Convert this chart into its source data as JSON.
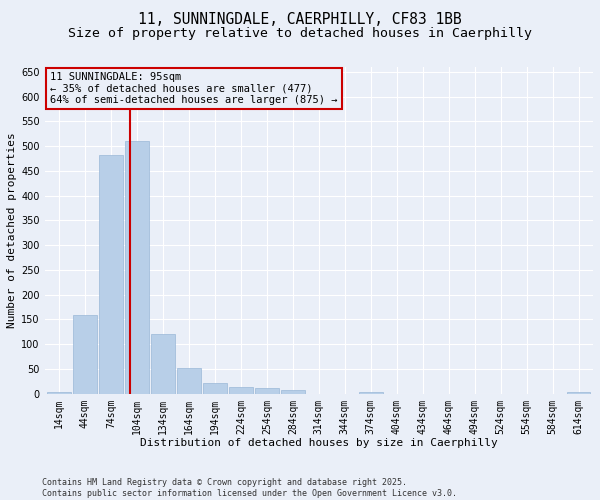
{
  "title_line1": "11, SUNNINGDALE, CAERPHILLY, CF83 1BB",
  "title_line2": "Size of property relative to detached houses in Caerphilly",
  "xlabel": "Distribution of detached houses by size in Caerphilly",
  "ylabel": "Number of detached properties",
  "footer_line1": "Contains HM Land Registry data © Crown copyright and database right 2025.",
  "footer_line2": "Contains public sector information licensed under the Open Government Licence v3.0.",
  "bar_labels": [
    "14sqm",
    "44sqm",
    "74sqm",
    "104sqm",
    "134sqm",
    "164sqm",
    "194sqm",
    "224sqm",
    "254sqm",
    "284sqm",
    "314sqm",
    "344sqm",
    "374sqm",
    "404sqm",
    "434sqm",
    "464sqm",
    "494sqm",
    "524sqm",
    "554sqm",
    "584sqm",
    "614sqm"
  ],
  "bar_values": [
    3,
    160,
    482,
    510,
    120,
    52,
    22,
    13,
    12,
    8,
    0,
    0,
    3,
    0,
    0,
    0,
    0,
    0,
    0,
    0,
    3
  ],
  "bar_color": "#b8cfe8",
  "bar_edgecolor": "#9ab8d8",
  "background_color": "#eaeff8",
  "grid_color": "#ffffff",
  "vline_x_idx": 2.72,
  "vline_color": "#cc0000",
  "annotation_text": "11 SUNNINGDALE: 95sqm\n← 35% of detached houses are smaller (477)\n64% of semi-detached houses are larger (875) →",
  "annotation_box_color": "#cc0000",
  "ylim": [
    0,
    660
  ],
  "yticks": [
    0,
    50,
    100,
    150,
    200,
    250,
    300,
    350,
    400,
    450,
    500,
    550,
    600,
    650
  ],
  "title_fontsize": 10.5,
  "subtitle_fontsize": 9.5,
  "axis_label_fontsize": 8,
  "tick_fontsize": 7,
  "annotation_fontsize": 7.5,
  "footer_fontsize": 6
}
